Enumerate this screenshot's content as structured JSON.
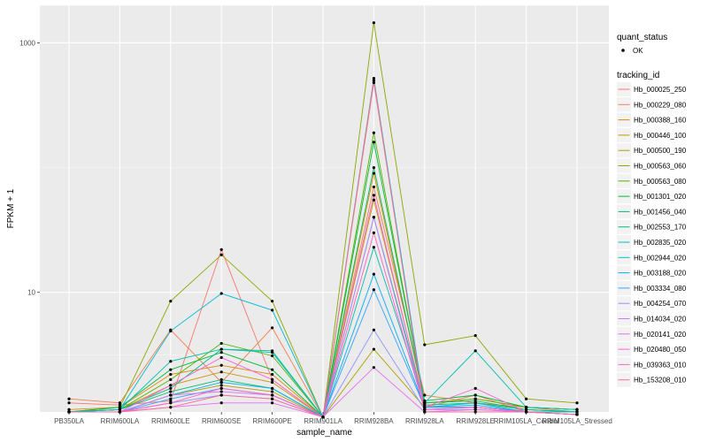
{
  "chart_data": {
    "type": "line",
    "xlabel": "sample_name",
    "ylabel": "FPKM + 1",
    "y_scale": "log10",
    "y_ticks": [
      1000,
      10
    ],
    "y_tick_labels": [
      "1000",
      "10"
    ],
    "ylim": [
      1.1,
      2000
    ],
    "grid": true,
    "legend_position": "right",
    "categories": [
      "PB350LA",
      "RRIM600LA",
      "RRIM600LE",
      "RRIM600SE",
      "RRIM600PE",
      "RRIM901LA",
      "RRIM928BA",
      "RRIM928LA",
      "RRIM928LE",
      "RRIM105LA_Control",
      "RRIM105LA_Stressed"
    ],
    "point_legend": {
      "title": "quant_status",
      "entries": [
        "OK"
      ]
    },
    "series_legend_title": "tracking_id",
    "series": [
      {
        "name": "Hb_000025_250",
        "color": "#F8766D",
        "values": [
          1.3,
          1.25,
          1.35,
          22,
          2.0,
          1.0,
          480,
          1.2,
          1.5,
          1.1,
          1.05
        ]
      },
      {
        "name": "Hb_000229_080",
        "color": "#EF7F49",
        "values": [
          1.4,
          1.3,
          5.0,
          1.9,
          5.2,
          1.0,
          70,
          1.5,
          1.3,
          1.2,
          1.1
        ]
      },
      {
        "name": "Hb_000388_160",
        "color": "#DF8A00",
        "values": [
          1.15,
          1.2,
          2.2,
          2.6,
          2.2,
          1.0,
          90,
          1.3,
          1.4,
          1.2,
          1.15
        ]
      },
      {
        "name": "Hb_000446_100",
        "color": "#CB9500",
        "values": [
          1.1,
          1.15,
          1.8,
          2.3,
          1.9,
          1.0,
          55,
          1.25,
          1.3,
          1.15,
          1.1
        ]
      },
      {
        "name": "Hb_000500_190",
        "color": "#AE9F00",
        "values": [
          1.1,
          1.1,
          1.5,
          1.8,
          1.6,
          1.0,
          3.5,
          1.2,
          1.2,
          1.1,
          1.05
        ]
      },
      {
        "name": "Hb_000563_060",
        "color": "#8BA800",
        "values": [
          1.1,
          1.2,
          8.5,
          20,
          8.5,
          1.0,
          1450,
          3.8,
          4.5,
          1.4,
          1.3
        ]
      },
      {
        "name": "Hb_000563_080",
        "color": "#53B400",
        "values": [
          1.1,
          1.15,
          2.0,
          3.9,
          3.1,
          1.0,
          190,
          1.3,
          1.4,
          1.2,
          1.15
        ]
      },
      {
        "name": "Hb_001301_020",
        "color": "#00BA38",
        "values": [
          1.1,
          1.2,
          2.4,
          3.3,
          2.4,
          1.0,
          160,
          1.35,
          1.5,
          1.2,
          1.15
        ]
      },
      {
        "name": "Hb_001456_040",
        "color": "#00BE6C",
        "values": [
          1.1,
          1.15,
          1.6,
          2.0,
          1.7,
          1.0,
          100,
          1.3,
          1.35,
          1.15,
          1.1
        ]
      },
      {
        "name": "Hb_002553_170",
        "color": "#00C08B",
        "values": [
          1.1,
          1.15,
          1.7,
          3.5,
          3.4,
          1.0,
          40,
          1.25,
          1.3,
          1.15,
          1.1
        ]
      },
      {
        "name": "Hb_002835_020",
        "color": "#00C0AF",
        "values": [
          1.1,
          1.15,
          2.8,
          3.5,
          3.3,
          1.0,
          23,
          1.3,
          3.4,
          1.2,
          1.15
        ]
      },
      {
        "name": "Hb_002944_020",
        "color": "#00BCD8",
        "values": [
          1.1,
          1.15,
          4.9,
          9.8,
          7.2,
          1.0,
          520,
          1.2,
          1.3,
          1.1,
          1.1
        ]
      },
      {
        "name": "Hb_003188_020",
        "color": "#00B0F6",
        "values": [
          1.1,
          1.1,
          1.5,
          1.9,
          1.7,
          1.0,
          14,
          1.2,
          1.25,
          1.1,
          1.05
        ]
      },
      {
        "name": "Hb_003334_080",
        "color": "#35A2FF",
        "values": [
          1.1,
          1.1,
          1.4,
          1.7,
          1.5,
          1.0,
          10.5,
          1.2,
          1.2,
          1.1,
          1.05
        ]
      },
      {
        "name": "Hb_004254_070",
        "color": "#9590FF",
        "values": [
          1.1,
          1.1,
          1.3,
          1.5,
          1.4,
          1.0,
          5.0,
          1.15,
          1.15,
          1.1,
          1.05
        ]
      },
      {
        "name": "Hb_014034_020",
        "color": "#C77CFF",
        "values": [
          1.1,
          1.1,
          1.5,
          1.6,
          1.5,
          1.0,
          40,
          1.15,
          1.2,
          1.1,
          1.05
        ]
      },
      {
        "name": "Hb_020141_020",
        "color": "#E76BF3",
        "values": [
          1.1,
          1.1,
          1.2,
          1.3,
          1.3,
          1.0,
          2.5,
          1.1,
          1.15,
          1.1,
          1.05
        ]
      },
      {
        "name": "Hb_020480_050",
        "color": "#FA62DB",
        "values": [
          1.1,
          1.1,
          1.8,
          3.0,
          2.0,
          1.0,
          60,
          1.2,
          1.7,
          1.1,
          1.05
        ]
      },
      {
        "name": "Hb_039363_010",
        "color": "#FF62BC",
        "values": [
          1.1,
          1.1,
          1.3,
          1.7,
          1.5,
          1.0,
          30,
          1.15,
          1.2,
          1.1,
          1.05
        ]
      },
      {
        "name": "Hb_153208_010",
        "color": "#FF6C91",
        "values": [
          1.1,
          1.1,
          1.2,
          1.5,
          1.4,
          1.0,
          500,
          1.1,
          1.1,
          1.1,
          1.05
        ]
      }
    ]
  },
  "colors": {
    "panel_background": "#EBEBEB",
    "grid_major": "#FFFFFF",
    "grid_minor": "#F5F5F5",
    "point": "#000000"
  }
}
